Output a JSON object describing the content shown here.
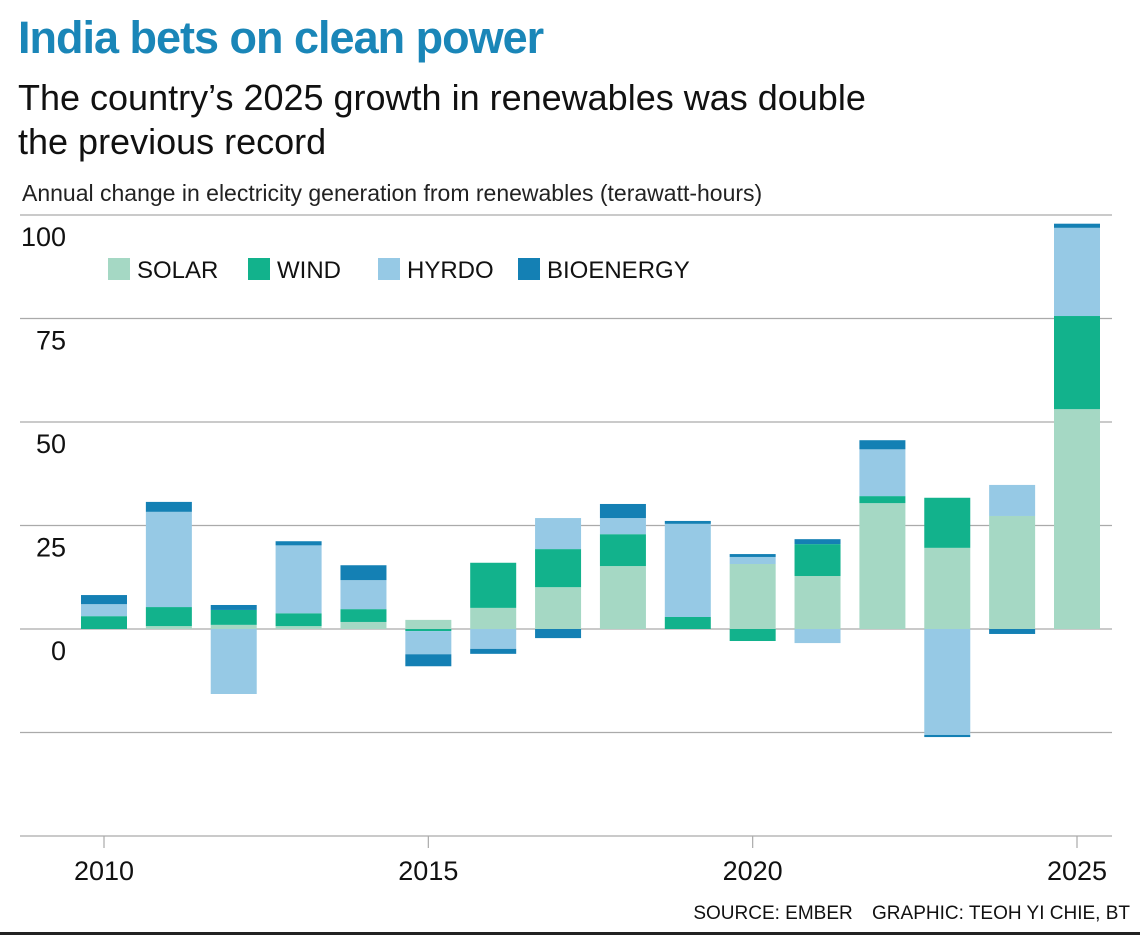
{
  "header": {
    "title": "India bets on clean power",
    "subtitle": "The country’s 2025 growth in renewables was double the previous record",
    "axis_note": "Annual change in electricity generation from renewables (terawatt-hours)"
  },
  "footer": {
    "source": "SOURCE: EMBER",
    "credit": "GRAPHIC: TEOH YI CHIE, BT"
  },
  "colors": {
    "title": "#1a86b8",
    "solar": "#a5d8c4",
    "wind": "#12b28c",
    "hydro": "#96c9e5",
    "bioenergy": "#1480b4",
    "grid": "#aaaaaa"
  },
  "chart_data": {
    "type": "bar",
    "stacked": true,
    "title": "India bets on clean power",
    "subtitle": "The country’s 2025 growth in renewables was double the previous record",
    "xlabel": "",
    "ylabel": "Annual change in electricity generation from renewables (terawatt-hours)",
    "ylim": [
      -50,
      100
    ],
    "yticks": [
      100,
      75,
      50,
      25,
      0
    ],
    "yticks_gridlines": [
      100,
      75,
      50,
      25,
      0,
      -25,
      -50
    ],
    "xticks": [
      2010,
      2015,
      2020,
      2025
    ],
    "grid": true,
    "legend_position": "top-left",
    "categories": [
      2010,
      2011,
      2012,
      2013,
      2014,
      2015,
      2016,
      2017,
      2018,
      2019,
      2020,
      2021,
      2022,
      2023,
      2024,
      2025
    ],
    "series": [
      {
        "name": "SOLAR",
        "key": "solar",
        "values": [
          0,
          0.7,
          1.0,
          0.7,
          1.7,
          2.2,
          5.1,
          10.1,
          15.2,
          0,
          15.7,
          12.8,
          30.4,
          19.6,
          27.3,
          53.1
        ]
      },
      {
        "name": "WIND",
        "key": "wind",
        "values": [
          3.1,
          4.6,
          3.6,
          3.1,
          3.1,
          -0.5,
          10.9,
          9.2,
          7.7,
          2.9,
          -2.9,
          7.7,
          1.7,
          12.1,
          0,
          22.5
        ]
      },
      {
        "name": "HYRDO",
        "key": "hydro",
        "values": [
          2.9,
          23.0,
          -15.7,
          16.4,
          7.0,
          -5.6,
          -4.8,
          7.5,
          3.9,
          22.5,
          1.7,
          -3.4,
          11.3,
          -25.6,
          7.5,
          21.3
        ]
      },
      {
        "name": "BIOENERGY",
        "key": "bioenergy",
        "values": [
          2.2,
          2.4,
          1.2,
          1.0,
          3.6,
          -2.9,
          -1.2,
          -2.2,
          3.4,
          0.7,
          0.7,
          1.2,
          2.2,
          -0.5,
          -1.2,
          1.0
        ]
      }
    ]
  }
}
